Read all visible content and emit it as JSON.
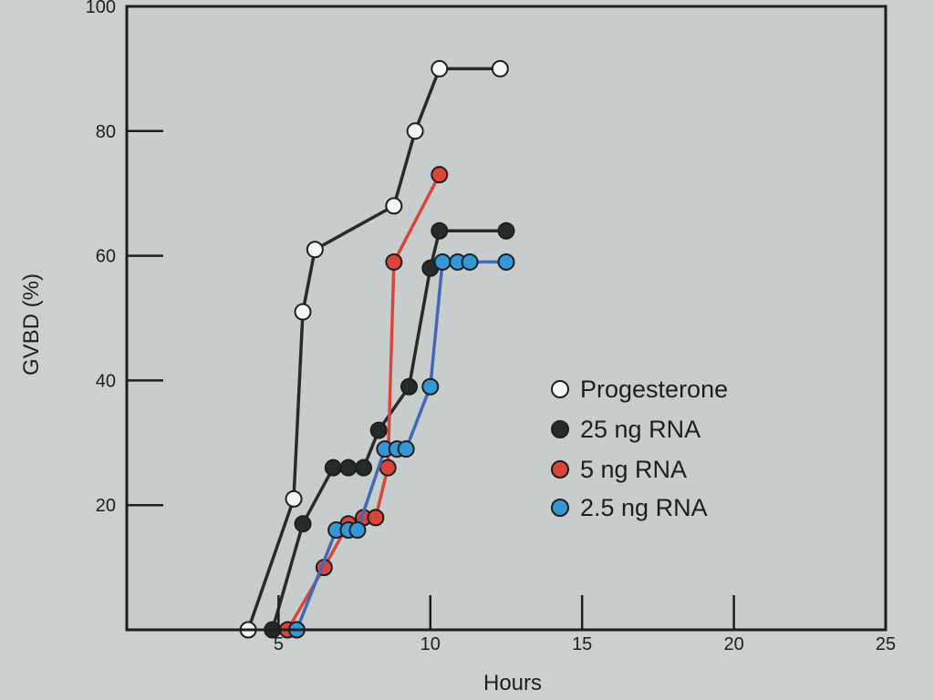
{
  "chart_data": {
    "type": "line",
    "xlabel": "Hours",
    "ylabel": "GVBD (%)",
    "xlim": [
      0,
      25
    ],
    "ylim": [
      0,
      100
    ],
    "x_ticks": [
      5,
      10,
      15,
      20,
      25
    ],
    "y_ticks": [
      20,
      40,
      60,
      80,
      100
    ],
    "grid": false,
    "legend_position": "center-right",
    "series": [
      {
        "name": "Progesterone",
        "marker_fill": "#f4f6f4",
        "x": [
          4,
          5.5,
          5.8,
          6.2,
          8.8,
          9.5,
          10.3,
          12.3
        ],
        "y": [
          0,
          21,
          51,
          61,
          68,
          80,
          90,
          90
        ]
      },
      {
        "name": "25 ng RNA",
        "marker_fill": "#262a28",
        "x": [
          4.8,
          5.8,
          6.8,
          7.3,
          7.8,
          8.3,
          9.3,
          10,
          10.3,
          12.5
        ],
        "y": [
          0,
          17,
          26,
          26,
          26,
          32,
          39,
          58,
          64,
          64
        ]
      },
      {
        "name": "5 ng RNA",
        "marker_fill": "#d9453a",
        "x": [
          5.3,
          6.5,
          7.3,
          7.8,
          8.2,
          8.6,
          8.8,
          10.3
        ],
        "y": [
          0,
          10,
          17,
          18,
          18,
          26,
          59,
          73
        ]
      },
      {
        "name": "2.5 ng RNA",
        "marker_fill": "#3398d8",
        "x": [
          5.6,
          6.9,
          7.3,
          7.6,
          8.5,
          8.9,
          9.2,
          10,
          10.4,
          10.9,
          11.3,
          12.5
        ],
        "y": [
          0,
          16,
          16,
          16,
          29,
          29,
          29,
          39,
          59,
          59,
          59,
          59
        ]
      }
    ],
    "line_color": "#262a28",
    "accent_line_colors": {
      "5 ng RNA": "#d9453a",
      "2.5 ng RNA": "#4169b8"
    }
  }
}
